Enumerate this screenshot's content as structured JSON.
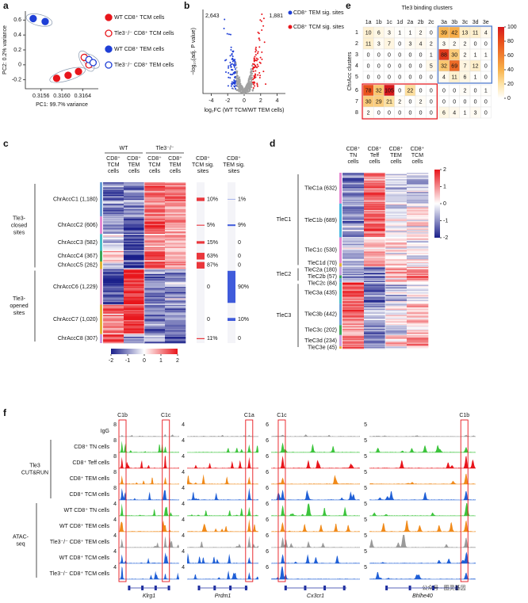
{
  "panels": {
    "a": {
      "label": "a",
      "type": "scatter",
      "xlabel": "PC1: 99.7% variance",
      "ylabel": "PC2: 0.2% variance",
      "xlim": [
        0.3153,
        0.3167
      ],
      "ylim": [
        -0.32,
        0.72
      ],
      "xticks": [
        0.3156,
        {
          "value": 0.316,
          "label": "0.3160"
        },
        0.3164
      ],
      "yticks": [
        -0.2,
        0,
        0.2,
        0.4,
        0.6
      ],
      "series": [
        {
          "name": "WT CD8⁺ TCM cells",
          "color": "#e8151b",
          "filled": true,
          "x": [
            0.3159,
            0.31612,
            0.31632
          ],
          "y": [
            -0.18,
            -0.14,
            -0.09
          ]
        },
        {
          "name": "Tle3⁻/⁻ CD8⁺ TCM cells",
          "color": "#e8151b",
          "filled": false,
          "x": [
            0.31643,
            0.31652
          ],
          "y": [
            0.1,
            0.0
          ]
        },
        {
          "name": "WT CD8⁺ TEM cells",
          "color": "#1f3fd6",
          "filled": true,
          "x": [
            0.31545,
            0.31568
          ],
          "y": [
            0.62,
            0.58
          ]
        },
        {
          "name": "Tle3⁻/⁻ CD8⁺ TEM cells",
          "color": "#1f3fd6",
          "filled": false,
          "x": [
            0.31652,
            0.3166
          ],
          "y": [
            0.07,
            0.03
          ]
        }
      ]
    },
    "b": {
      "label": "b",
      "type": "volcano",
      "xlabel": "log₂FC (WT TCM/WT TEM cells)",
      "ylabel": "−log₁₀(adj. P value)",
      "xlim": [
        -5,
        5
      ],
      "xticks": [
        -4,
        -2,
        0,
        2,
        4
      ],
      "counts": [
        "2,643",
        "1,881"
      ],
      "legend": [
        {
          "name": "CD8⁺ TEM sig. sites",
          "color": "#1f3fd6"
        },
        {
          "name": "CD8⁺ TCM sig. sites",
          "color": "#e8151b"
        }
      ]
    },
    "c": {
      "label": "c",
      "type": "heatmap",
      "groups": [
        "WT",
        "Tle3⁻/⁻"
      ],
      "columns": [
        [
          "CD8⁺",
          "TCM",
          "cells"
        ],
        [
          "CD8⁺",
          "TEM",
          "cells"
        ],
        [
          "CD8⁺",
          "TCM",
          "cells"
        ],
        [
          "CD8⁺",
          "TEM",
          "cells"
        ]
      ],
      "sig_columns": [
        [
          "CD8⁺",
          "TCM sig.",
          "sites"
        ],
        [
          "CD8⁺",
          "TEM sig.",
          "sites"
        ]
      ],
      "clusters": [
        "ChrAccC1 (1,180)",
        "ChrAccC2 (606)",
        "ChrAccC3 (582)",
        "ChrAccC4 (367)",
        "ChrAccC5 (262)",
        "ChrAccC6 (1,229)",
        "ChrAccC7 (1,020)",
        "ChrAccC8 (307)"
      ],
      "sizes": [
        1180,
        606,
        582,
        367,
        262,
        1229,
        1020,
        307
      ],
      "site_groups": [
        [
          "Tle3-",
          "closed",
          "sites"
        ],
        [
          "Tle3-",
          "opened",
          "sites"
        ]
      ],
      "tcm_sig": [
        10,
        5,
        15,
        63,
        87,
        0,
        0,
        11
      ],
      "tcm_sig_labels": [
        "10%",
        "5%",
        "15%",
        "63%",
        "87%",
        "0",
        "0",
        "11%"
      ],
      "tem_sig": [
        1,
        9,
        0,
        0,
        0,
        90,
        10,
        0
      ],
      "tem_sig_labels": [
        "1%",
        "9%",
        "0",
        "0",
        "0",
        "90%",
        "10%",
        "0"
      ],
      "colorbar_ticks": [
        -2,
        -1,
        0,
        1,
        2
      ]
    },
    "d": {
      "label": "d",
      "type": "heatmap",
      "columns": [
        [
          "CD8⁺",
          "TN",
          "cells"
        ],
        [
          "CD8⁺",
          "Teff",
          "cells"
        ],
        [
          "CD8⁺",
          "TEM",
          "cells"
        ],
        [
          "CD8⁺",
          "TCM",
          "cells"
        ]
      ],
      "clusters": [
        "TleC1a (632)",
        "TleC1b (689)",
        "TleC1c (530)",
        "TleC1d (70)",
        "TleC2a (180)",
        "TleC2b (57)",
        "TleC2c (84)",
        "TleC3a (435)",
        "TleC3b (442)",
        "TleC3c (202)",
        "TleC3d (234)",
        "TleC3e (45)"
      ],
      "sizes": [
        632,
        689,
        530,
        70,
        180,
        57,
        84,
        435,
        442,
        202,
        234,
        45
      ],
      "cluster_groups": [
        "TleC1",
        "TleC2",
        "TleC3"
      ],
      "colorbar_ticks": [
        2,
        1,
        0,
        -1,
        -2
      ]
    },
    "e": {
      "label": "e",
      "type": "matrix",
      "title": "Tle3 binding clusters",
      "ylabel": "ChrAcc clusters",
      "columns": [
        "1a",
        "1b",
        "1c",
        "1d",
        "2a",
        "2b",
        "2c",
        "3a",
        "3b",
        "3c",
        "3d",
        "3e"
      ],
      "rows": [
        1,
        2,
        3,
        4,
        5,
        6,
        7,
        8
      ],
      "values": [
        [
          10,
          6,
          3,
          1,
          1,
          2,
          0,
          39,
          42,
          13,
          11,
          4
        ],
        [
          11,
          3,
          7,
          0,
          3,
          4,
          2,
          3,
          2,
          2,
          0,
          0
        ],
        [
          0,
          0,
          0,
          0,
          0,
          0,
          1,
          88,
          30,
          2,
          1,
          1
        ],
        [
          0,
          0,
          0,
          0,
          0,
          0,
          5,
          32,
          69,
          7,
          12,
          0
        ],
        [
          0,
          0,
          0,
          0,
          0,
          0,
          0,
          4,
          11,
          6,
          1,
          0
        ],
        [
          78,
          32,
          105,
          0,
          22,
          0,
          0,
          0,
          0,
          2,
          0,
          1
        ],
        [
          30,
          29,
          21,
          2,
          0,
          2,
          0,
          0,
          0,
          0,
          0,
          0
        ],
        [
          2,
          0,
          0,
          0,
          0,
          0,
          0,
          6,
          4,
          1,
          3,
          0
        ]
      ],
      "lim": [
        0,
        100
      ],
      "ticks": [
        0,
        20,
        40,
        60,
        80,
        100
      ]
    },
    "f": {
      "label": "f",
      "type": "tracks",
      "rows": [
        {
          "label": "IgG",
          "color": "#9a9a9a"
        },
        {
          "label": "CD8⁺ TN cells",
          "color": "#3cc43c"
        },
        {
          "label": "CD8⁺ Teff cells",
          "color": "#e8151b"
        },
        {
          "label": "CD8⁺ TEM cells",
          "color": "#f08a1a"
        },
        {
          "label": "CD8⁺ TCM cells",
          "color": "#1f5fd6"
        },
        {
          "label": "WT CD8⁺ TN cells",
          "color": "#3cc43c"
        },
        {
          "label": "WT CD8⁺ TEM cells",
          "color": "#f08a1a"
        },
        {
          "label": "Tle3⁻/⁻ CD8⁺ TEM cells",
          "color": "#9a9a9a"
        },
        {
          "label": "WT CD8⁺ TCM cells",
          "color": "#1f5fd6"
        },
        {
          "label": "Tle3⁻/⁻ CD8⁺ TCM cells",
          "color": "#1f5fd6"
        }
      ],
      "row_groups": [
        [
          "Tle3",
          "CUT&RUN"
        ],
        [
          "ATAC-",
          "seq"
        ]
      ],
      "genes": [
        {
          "name": "Klrg1",
          "regions": [
            "C1b",
            "C1c"
          ],
          "scales": [
            8,
            8,
            8,
            8,
            8,
            4,
            4,
            4,
            4,
            4
          ]
        },
        {
          "name": "Prdm1",
          "regions": [
            "C1a"
          ],
          "scales": [
            4,
            4,
            4,
            4,
            4,
            4,
            4,
            4,
            4,
            4
          ]
        },
        {
          "name": "Cx3cr1",
          "regions": [
            "C1c"
          ],
          "scales": [
            6,
            6,
            6,
            6,
            6,
            6,
            6,
            6,
            6,
            6
          ]
        },
        {
          "name": "Bhlhe40",
          "regions": [
            "C1b"
          ],
          "scales": [
            5,
            5,
            5,
            5,
            5,
            5,
            5,
            5,
            5,
            5
          ]
        }
      ]
    }
  },
  "watermark": "公众号 · 图灵基因"
}
